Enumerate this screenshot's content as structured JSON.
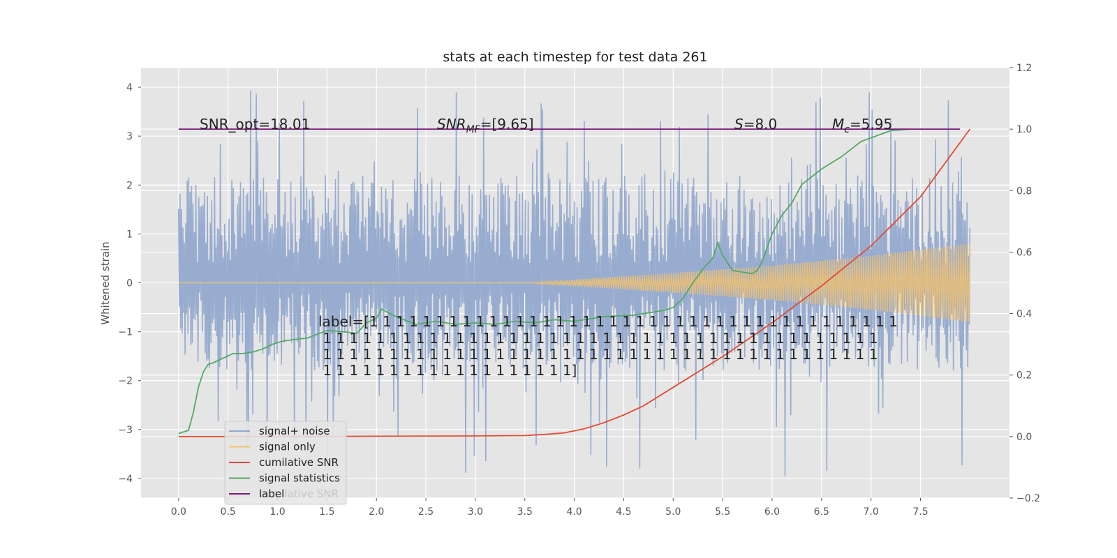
{
  "chart_data": {
    "type": "line",
    "title": "stats at each timestep for test data 261",
    "ylabel": "Whitened strain",
    "xlim": [
      -0.38,
      8.4
    ],
    "ylim": [
      -4.4,
      4.4
    ],
    "y2lim": [
      -0.2,
      1.2
    ],
    "x_ticks": [
      0.0,
      0.5,
      1.0,
      1.5,
      2.0,
      2.5,
      3.0,
      3.5,
      4.0,
      4.5,
      5.0,
      5.5,
      6.0,
      6.5,
      7.0,
      7.5
    ],
    "x_tick_labels": [
      "0.0",
      "0.5",
      "1.0",
      "1.5",
      "2.0",
      "2.5",
      "3.0",
      "3.5",
      "4.0",
      "4.5",
      "5.0",
      "5.5",
      "6.0",
      "6.5",
      "7.0",
      "7.5"
    ],
    "y_ticks": [
      -4,
      -3,
      -2,
      -1,
      0,
      1,
      2,
      3,
      4
    ],
    "y_tick_labels": [
      "−4",
      "−3",
      "−2",
      "−1",
      "0",
      "1",
      "2",
      "3",
      "4"
    ],
    "y2_ticks": [
      -0.2,
      0.0,
      0.2,
      0.4,
      0.6,
      0.8,
      1.0,
      1.2
    ],
    "y2_tick_labels": [
      "−0.2",
      "0.0",
      "0.2",
      "0.4",
      "0.6",
      "0.8",
      "1.0",
      "1.2"
    ],
    "grid": true,
    "legend_position": "lower-left",
    "series": [
      {
        "name": "signal+ noise",
        "axis": "left",
        "color": "#94a9ce",
        "description": "noisy whitened strain, dense oscillation roughly between -4 and 4",
        "envelope_x": [
          0,
          8
        ],
        "envelope_typical": [
          -1.8,
          2.2
        ],
        "envelope_extreme": [
          -4.05,
          4.05
        ]
      },
      {
        "name": "signal only",
        "axis": "left",
        "color": "#f5c26b",
        "description": "chirp signal, flat near 0 until ~3.5 then growing to amplitude ~0.8 at x=8",
        "envelope_x": [
          0,
          3.5,
          5,
          6,
          7,
          8
        ],
        "envelope_amplitude": [
          0.0,
          0.0,
          0.2,
          0.35,
          0.55,
          0.8
        ]
      },
      {
        "name": "cumilative SNR",
        "axis": "right",
        "color": "#e24a33",
        "x": [
          0,
          1,
          2,
          3,
          3.5,
          3.7,
          3.9,
          4.1,
          4.3,
          4.5,
          4.7,
          5.0,
          5.5,
          6.0,
          6.5,
          7.0,
          7.5,
          8.0
        ],
        "values": [
          0.0,
          0.0,
          0.001,
          0.002,
          0.003,
          0.007,
          0.012,
          0.025,
          0.045,
          0.07,
          0.1,
          0.16,
          0.26,
          0.37,
          0.49,
          0.62,
          0.78,
          1.0
        ]
      },
      {
        "name": "signal statistics",
        "axis": "right",
        "color": "#55a868",
        "x": [
          0,
          0.1,
          0.15,
          0.2,
          0.25,
          0.3,
          0.35,
          0.45,
          0.55,
          0.65,
          0.75,
          0.85,
          0.95,
          1.05,
          1.15,
          1.3,
          1.5,
          1.7,
          1.8,
          1.9,
          2.0,
          2.05,
          2.2,
          2.4,
          2.6,
          2.8,
          3.0,
          3.2,
          3.4,
          3.6,
          3.8,
          4.0,
          4.3,
          4.6,
          4.9,
          5.0,
          5.1,
          5.2,
          5.3,
          5.4,
          5.45,
          5.5,
          5.6,
          5.7,
          5.8,
          5.85,
          5.9,
          6.0,
          6.1,
          6.2,
          6.3,
          6.5,
          6.7,
          6.9,
          7.2,
          7.4
        ],
        "values": [
          0.01,
          0.02,
          0.08,
          0.16,
          0.21,
          0.235,
          0.24,
          0.255,
          0.27,
          0.27,
          0.275,
          0.285,
          0.3,
          0.31,
          0.315,
          0.32,
          0.345,
          0.34,
          0.335,
          0.37,
          0.385,
          0.415,
          0.39,
          0.365,
          0.375,
          0.365,
          0.37,
          0.365,
          0.375,
          0.37,
          0.38,
          0.375,
          0.39,
          0.395,
          0.41,
          0.42,
          0.45,
          0.5,
          0.545,
          0.58,
          0.63,
          0.59,
          0.54,
          0.535,
          0.53,
          0.54,
          0.57,
          0.66,
          0.72,
          0.76,
          0.82,
          0.87,
          0.91,
          0.96,
          0.995,
          1.0
        ]
      },
      {
        "name": "label",
        "axis": "right",
        "color": "#7b1c7b",
        "x": [
          0,
          7.9
        ],
        "values": [
          1.0,
          1.0
        ]
      }
    ],
    "annotations": {
      "snr_opt": "SNR_opt=18.01",
      "snr_mf_main": "SNR",
      "snr_mf_sub": "MF",
      "snr_mf_value": "=[9.65]",
      "s_var": "S",
      "s_value": "=8.0",
      "mc_var": "M",
      "mc_sub": "c",
      "mc_value": "=5.95",
      "label_lines": [
        "label=[1 1 1 1 1 1 1 1 1 1 1 1 1 1 1 1 1 1 1 1 1 1 1 1 1 1 1 1 1 1 1 1 1 1 1 1 1 1 1 1",
        " 1 1 1 1 1 1 1 1 1 1 1 1 1 1 1 1 1 1 1 1 1 1 1 1 1 1 1 1 1 1 1 1 1 1 1 1 1 1 1 1 1 1",
        " 1 1 1 1 1 1 1 1 1 1 1 1 1 1 1 1 1 1 1 1 1 1 1 1 1 1 1 1 1 1 1 1 1 1 1 1 1 1 1 1 1 1",
        " 1 1 1 1 1 1 1 1 1 1 1 1 1 1 1 1 1 1 1]"
      ]
    },
    "legend": {
      "items": [
        "signal+ noise",
        "signal only",
        "cumilative SNR",
        "signal statistics",
        "label"
      ],
      "ghost_text": "cumilative SNR"
    }
  }
}
